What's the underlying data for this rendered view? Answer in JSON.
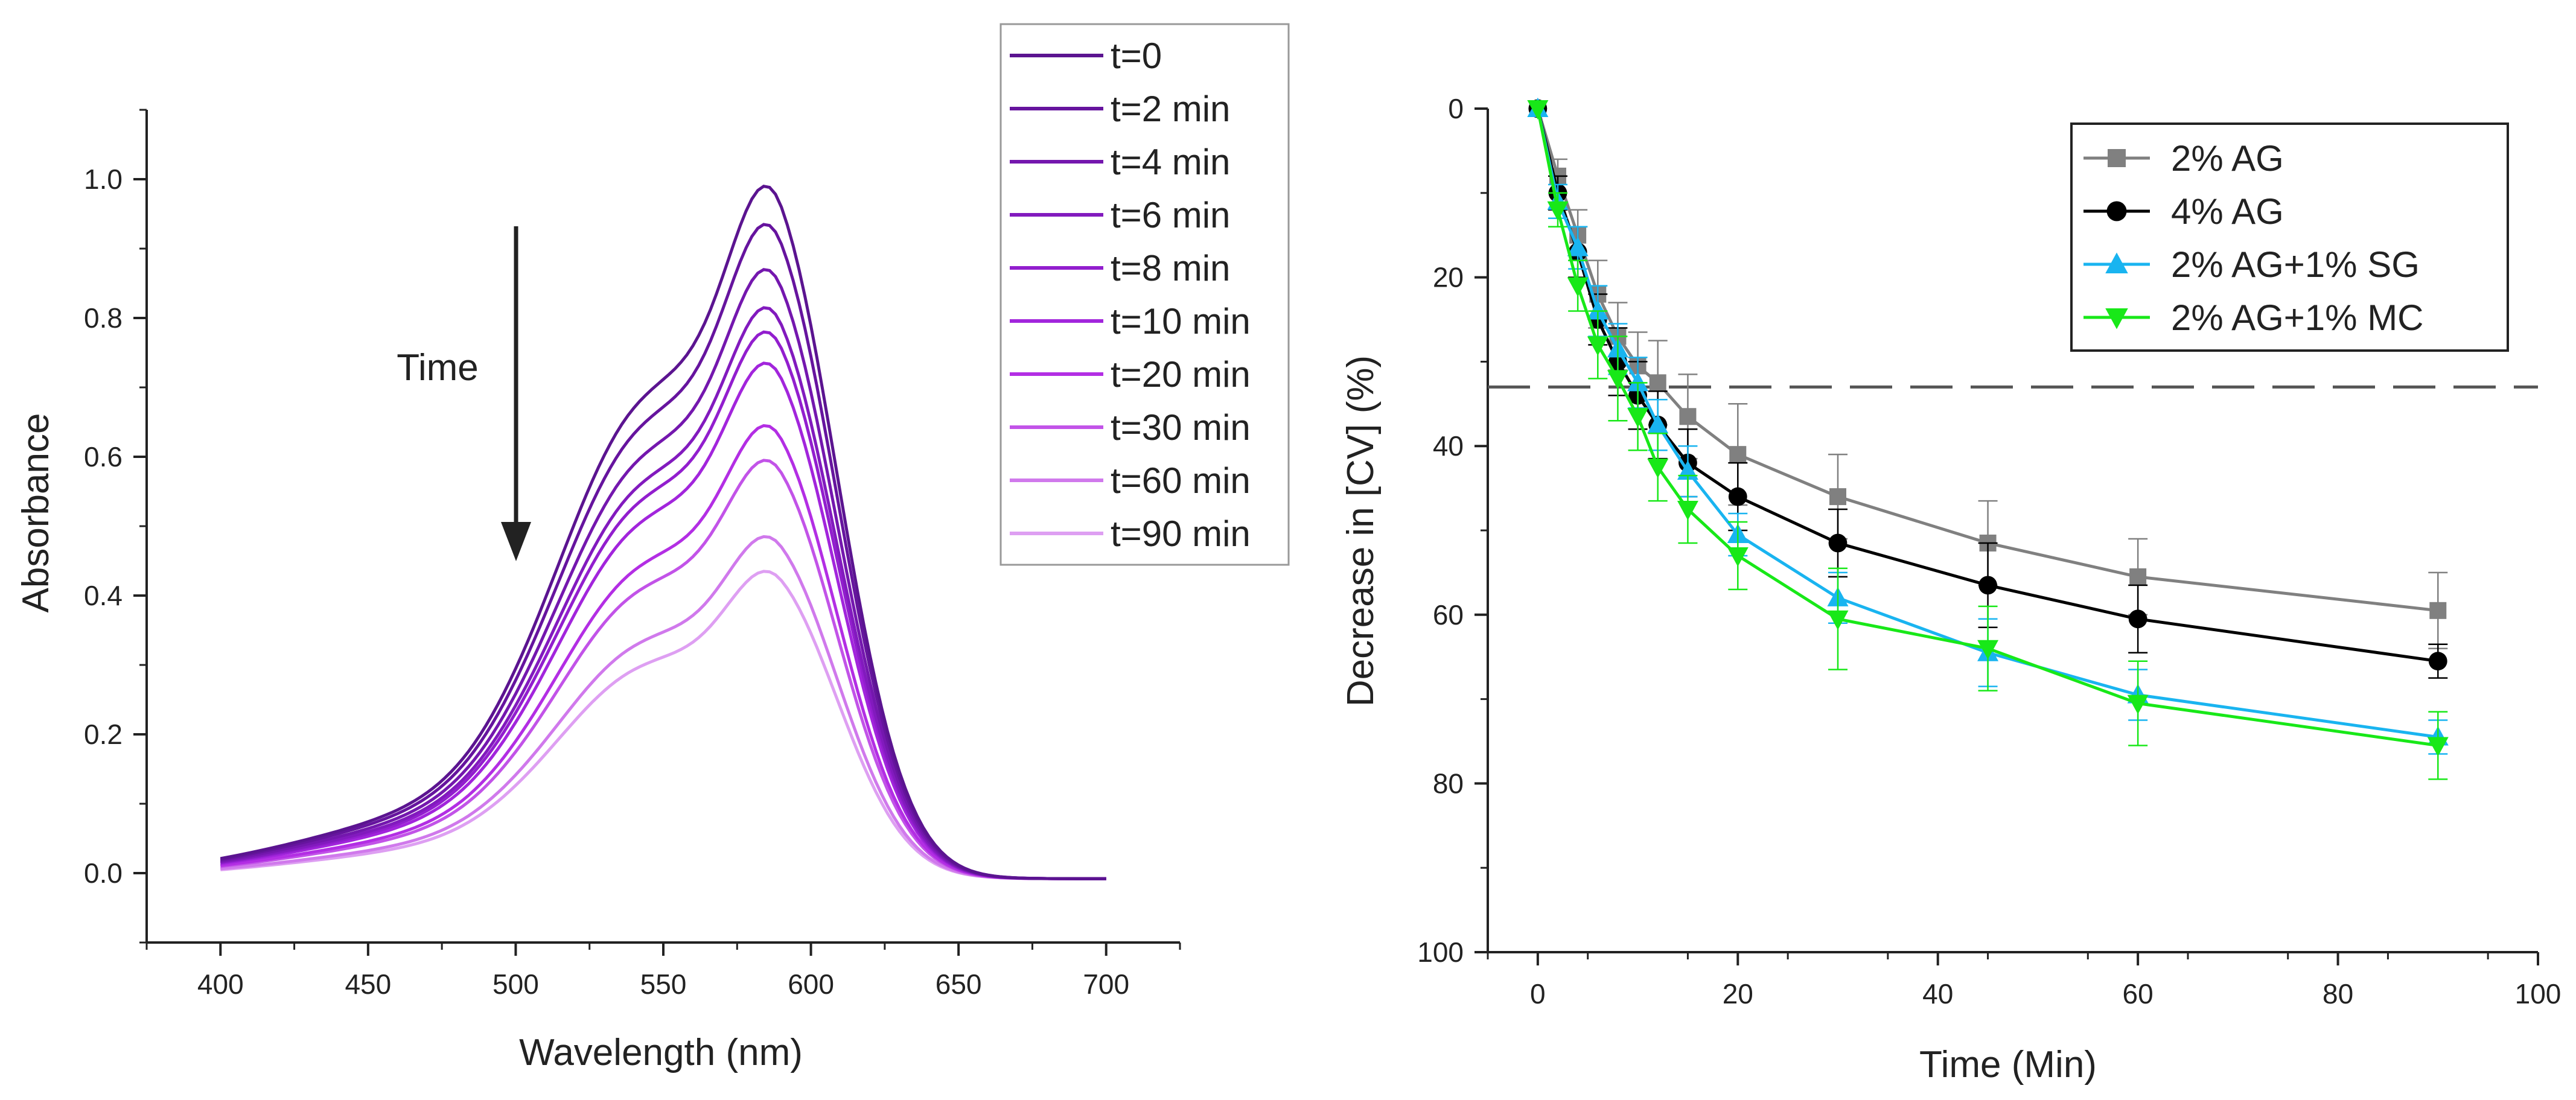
{
  "chart_data": [
    {
      "type": "line",
      "title": "",
      "xlabel": "Wavelength (nm)",
      "ylabel": "Absorbance",
      "xlim": [
        375,
        725
      ],
      "ylim": [
        -0.1,
        1.1
      ],
      "xticks": [
        400,
        450,
        500,
        550,
        600,
        650,
        700
      ],
      "yticks": [
        0.0,
        0.2,
        0.4,
        0.6,
        0.8,
        1.0
      ],
      "grid": false,
      "legend_position": "top-right",
      "annotation": {
        "text": "Time",
        "arrow": "down"
      },
      "series": [
        {
          "name": "t=0",
          "peak": 0.99,
          "color": "#5B1490"
        },
        {
          "name": "t=2 min",
          "peak": 0.935,
          "color": "#66149E"
        },
        {
          "name": "t=4 min",
          "peak": 0.87,
          "color": "#7417AE"
        },
        {
          "name": "t=6 min",
          "peak": 0.815,
          "color": "#821ABE"
        },
        {
          "name": "t=8 min",
          "peak": 0.78,
          "color": "#921ECE"
        },
        {
          "name": "t=10 min",
          "peak": 0.735,
          "color": "#A225DC"
        },
        {
          "name": "t=20 min",
          "peak": 0.645,
          "color": "#B32EE4"
        },
        {
          "name": "t=30 min",
          "peak": 0.595,
          "color": "#C253E8"
        },
        {
          "name": "t=60 min",
          "peak": 0.485,
          "color": "#D079EC"
        },
        {
          "name": "t=90 min",
          "peak": 0.435,
          "color": "#DE9FF2"
        }
      ]
    },
    {
      "type": "line",
      "title": "",
      "xlabel": "Time (Min)",
      "ylabel": "Decrease in [CV] (%)",
      "xlim": [
        -5,
        100
      ],
      "ylim": [
        100,
        0
      ],
      "xticks": [
        0,
        20,
        40,
        60,
        80,
        100
      ],
      "yticks": [
        0,
        20,
        40,
        60,
        80,
        100
      ],
      "reference_line_y": 33,
      "grid": false,
      "legend_position": "top-right",
      "x": [
        0,
        2,
        4,
        6,
        8,
        10,
        12,
        15,
        20,
        30,
        45,
        60,
        90
      ],
      "series": [
        {
          "name": "2% AG",
          "marker": "square",
          "color": "#808080",
          "values": [
            0,
            8,
            15,
            22,
            27,
            30.5,
            32.5,
            36.5,
            41,
            46,
            51.5,
            55.5,
            59.5
          ],
          "errors": [
            0,
            2,
            3,
            4,
            4,
            4,
            5,
            5,
            6,
            5,
            5,
            4.5,
            4.5
          ]
        },
        {
          "name": "4% AG",
          "marker": "circle",
          "color": "#000000",
          "values": [
            0,
            10,
            17,
            25,
            30,
            34,
            37.5,
            42,
            46,
            51.5,
            56.5,
            60.5,
            65.5
          ],
          "errors": [
            0,
            2,
            3,
            3,
            4,
            4,
            4,
            4,
            4,
            4,
            5,
            4,
            2
          ]
        },
        {
          "name": "2% AG+1% SG",
          "marker": "triangle-up",
          "color": "#19B4F0",
          "values": [
            0,
            11,
            16.5,
            24,
            28.5,
            32.5,
            37.5,
            43,
            50.5,
            58,
            64.5,
            69.5,
            74.5
          ],
          "errors": [
            0,
            2,
            2.5,
            3,
            3,
            3,
            3,
            3,
            2.5,
            3,
            4,
            3,
            2
          ]
        },
        {
          "name": "2% AG+1% MC",
          "marker": "triangle-down",
          "color": "#18E818",
          "values": [
            0,
            12,
            21,
            28,
            32,
            36.5,
            42.5,
            47.5,
            53,
            60.5,
            64,
            70.5,
            75.5
          ],
          "errors": [
            0,
            2,
            3,
            4,
            5,
            4,
            4,
            4,
            4,
            6,
            5,
            5,
            4
          ]
        }
      ]
    }
  ]
}
